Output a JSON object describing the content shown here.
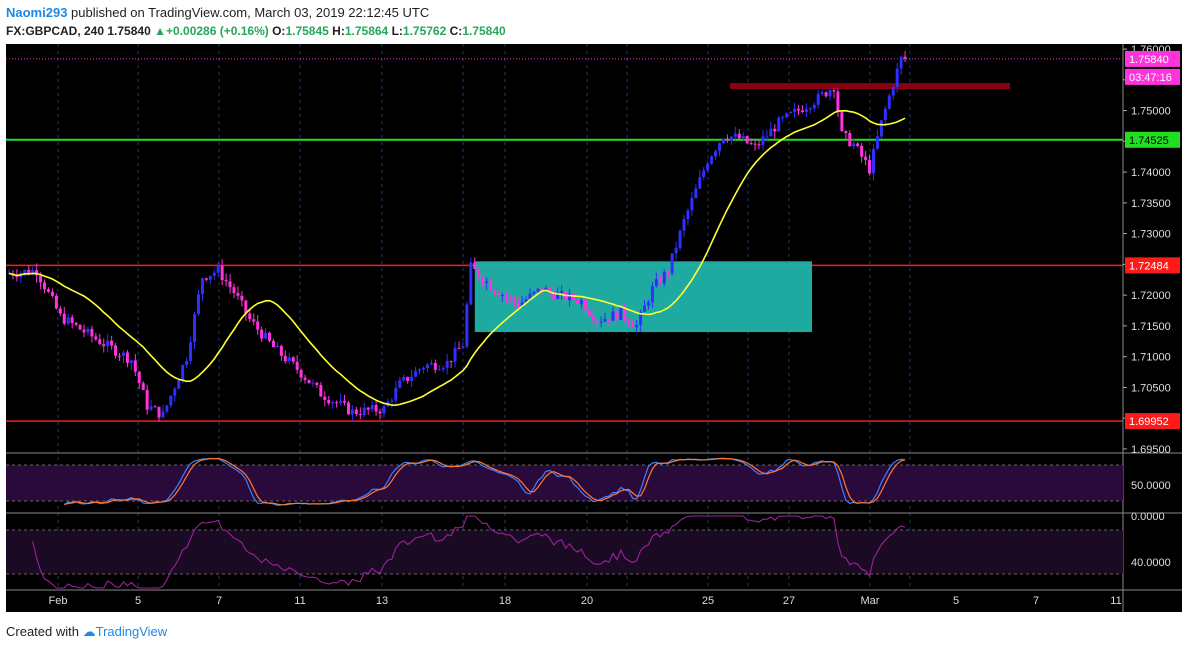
{
  "header": {
    "author": "Naomi293",
    "published_text": " published on TradingView.com, March 03, 2019 22:12:45 UTC",
    "symbol": "FX:GBPCAD, 240",
    "last": "1.75840",
    "change": "+0.00286 (+0.16%)",
    "o_label": "O:",
    "o_value": "1.75845",
    "h_label": "H:",
    "h_value": "1.75864",
    "l_label": "L:",
    "l_value": "1.75762",
    "c_label": "C:",
    "c_value": "1.75840"
  },
  "footer": {
    "created_with": "Created with",
    "brand": "TradingView"
  },
  "colors": {
    "bull": "#2f2fff",
    "bear": "#ff33dd",
    "ma": "#ffff33",
    "support_red": "#ff1a1a",
    "green_line": "#22dd22",
    "box": "#20b2aa",
    "resistance_bar": "#8b0010",
    "stoch_k": "#3f7fff",
    "stoch_d": "#ff7733",
    "rsi": "#a020a0"
  },
  "chart_data": {
    "type": "candlestick",
    "symbol": "GBPCAD",
    "timeframe": "240",
    "price_axis": {
      "min": 1.6945,
      "max": 1.7605,
      "ticks": [
        "1.76000",
        "1.75500",
        "1.75000",
        "1.74500",
        "1.74000",
        "1.73500",
        "1.73000",
        "1.72500",
        "1.72000",
        "1.71500",
        "1.71000",
        "1.70500",
        "1.70000",
        "1.69500"
      ]
    },
    "x_labels": [
      "Feb",
      "5",
      "7",
      "11",
      "13",
      "18",
      "20",
      "25",
      "27",
      "Mar",
      "5",
      "7",
      "11"
    ],
    "price_labels": [
      {
        "text": "1.75840",
        "value": 1.7584,
        "color": "#ff33dd"
      },
      {
        "text": "03:47:16",
        "value": 1.7554,
        "color": "#ff33dd"
      },
      {
        "text": "1.74525",
        "value": 1.74525,
        "color": "#22dd22"
      },
      {
        "text": "1.72484",
        "value": 1.72484,
        "color": "#ff1a1a"
      },
      {
        "text": "1.69952",
        "value": 1.69952,
        "color": "#ff1a1a"
      }
    ],
    "horizontal_lines": [
      {
        "name": "resistance",
        "value": 1.74525,
        "color": "#22dd22"
      },
      {
        "name": "mid-support",
        "value": 1.72484,
        "color": "#ff1a1a"
      },
      {
        "name": "low-support",
        "value": 1.69952,
        "color": "#ff1a1a"
      }
    ],
    "box": {
      "from_index": 118,
      "to_index": 168,
      "top": 1.7255,
      "bottom": 1.714
    },
    "resistance_bar": {
      "from_index": 150,
      "to_index": 206,
      "value": 1.754
    },
    "candles": [],
    "stochastic": {
      "ticks": [
        "50.0000",
        "0.0000"
      ],
      "k": [],
      "d": []
    },
    "rsi": {
      "ticks": [
        "40.0000"
      ],
      "values": []
    }
  }
}
